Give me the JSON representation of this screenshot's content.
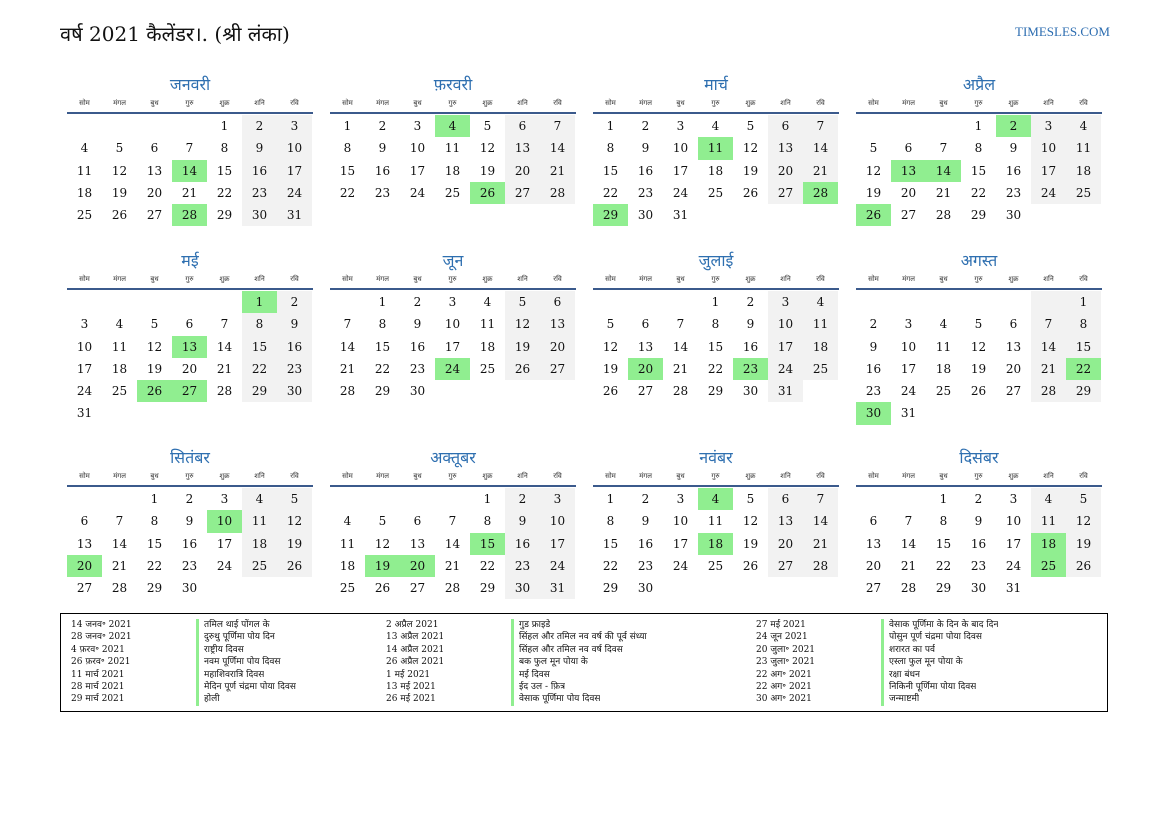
{
  "header": {
    "title": "वर्ष 2021 कैलेंडर।. (श्री लंका)",
    "site": "TIMESLES.COM"
  },
  "weekdays": [
    "सोम",
    "मंगल",
    "बुध",
    "गुरु",
    "शुक्र",
    "शनि",
    "रवि"
  ],
  "colors": {
    "holiday": "#90ee90",
    "weekend": "#f2f2f2",
    "title": "#2e6fb0",
    "rule": "#3b5a8c"
  },
  "months": [
    {
      "name": "जनवरी",
      "offset": 4,
      "days": 31,
      "holidays": [
        14,
        28
      ]
    },
    {
      "name": "फ़रवरी",
      "offset": 0,
      "days": 28,
      "holidays": [
        4,
        26
      ]
    },
    {
      "name": "मार्च",
      "offset": 0,
      "days": 31,
      "holidays": [
        11,
        28,
        29
      ]
    },
    {
      "name": "अप्रैल",
      "offset": 3,
      "days": 30,
      "holidays": [
        2,
        13,
        14,
        26
      ]
    },
    {
      "name": "मई",
      "offset": 5,
      "days": 31,
      "holidays": [
        1,
        13,
        26,
        27
      ]
    },
    {
      "name": "जून",
      "offset": 1,
      "days": 30,
      "holidays": [
        24
      ]
    },
    {
      "name": "जुलाई",
      "offset": 3,
      "days": 31,
      "holidays": [
        20,
        23
      ]
    },
    {
      "name": "अगस्त",
      "offset": 6,
      "days": 31,
      "holidays": [
        22,
        30
      ]
    },
    {
      "name": "सितंबर",
      "offset": 2,
      "days": 30,
      "holidays": [
        10,
        20
      ]
    },
    {
      "name": "अक्तूबर",
      "offset": 4,
      "days": 31,
      "holidays": [
        15,
        19,
        20
      ]
    },
    {
      "name": "नवंबर",
      "offset": 0,
      "days": 30,
      "holidays": [
        4,
        18
      ]
    },
    {
      "name": "दिसंबर",
      "offset": 2,
      "days": 31,
      "holidays": [
        18,
        25
      ]
    }
  ],
  "holidays_legend": [
    {
      "date": "14 जनव॰ 2021",
      "name": "तमिल थाई पोंगल के"
    },
    {
      "date": "28 जनव॰ 2021",
      "name": "दुरुथु पूर्णिमा पोय दिन"
    },
    {
      "date": "4 फ़रव॰ 2021",
      "name": "राष्ट्रीय दिवस"
    },
    {
      "date": "26 फ़रव॰ 2021",
      "name": "नवम पूर्णिमा पोय दिवस"
    },
    {
      "date": "11 मार्च 2021",
      "name": "महाशिवरात्रि दिवस"
    },
    {
      "date": "28 मार्च 2021",
      "name": "मेदिन पूर्ण चंद्रमा पोया दिवस"
    },
    {
      "date": "29 मार्च 2021",
      "name": "होली"
    },
    {
      "date": "2 अप्रैल 2021",
      "name": "गुड फ्राइडे"
    },
    {
      "date": "13 अप्रैल 2021",
      "name": "सिंहल और तमिल नव वर्ष की पूर्व संध्या"
    },
    {
      "date": "14 अप्रैल 2021",
      "name": "सिंहल और तमिल नव वर्ष दिवस"
    },
    {
      "date": "26 अप्रैल 2021",
      "name": "बक फुल मून पोया के"
    },
    {
      "date": "1 मई 2021",
      "name": "मई दिवस"
    },
    {
      "date": "13 मई 2021",
      "name": "ईद उल - फ़ित्र"
    },
    {
      "date": "26 मई 2021",
      "name": "वेसाक पूर्णिमा पोय दिवस"
    },
    {
      "date": "27 मई 2021",
      "name": "वेसाक पूर्णिमा के दिन के बाद दिन"
    },
    {
      "date": "24 जून 2021",
      "name": "पोसुन पूर्ण चंद्रमा पोया दिवस"
    },
    {
      "date": "20 जुला॰ 2021",
      "name": "शरारत का पर्व"
    },
    {
      "date": "23 जुला॰ 2021",
      "name": "एस्ला फुल मून पोया के"
    },
    {
      "date": "22 अग॰ 2021",
      "name": "रक्षा बंधन"
    },
    {
      "date": "22 अग॰ 2021",
      "name": "निकिनी पूर्णिमा पोया दिवस"
    },
    {
      "date": "30 अग॰ 2021",
      "name": "जन्माष्टमी"
    }
  ]
}
